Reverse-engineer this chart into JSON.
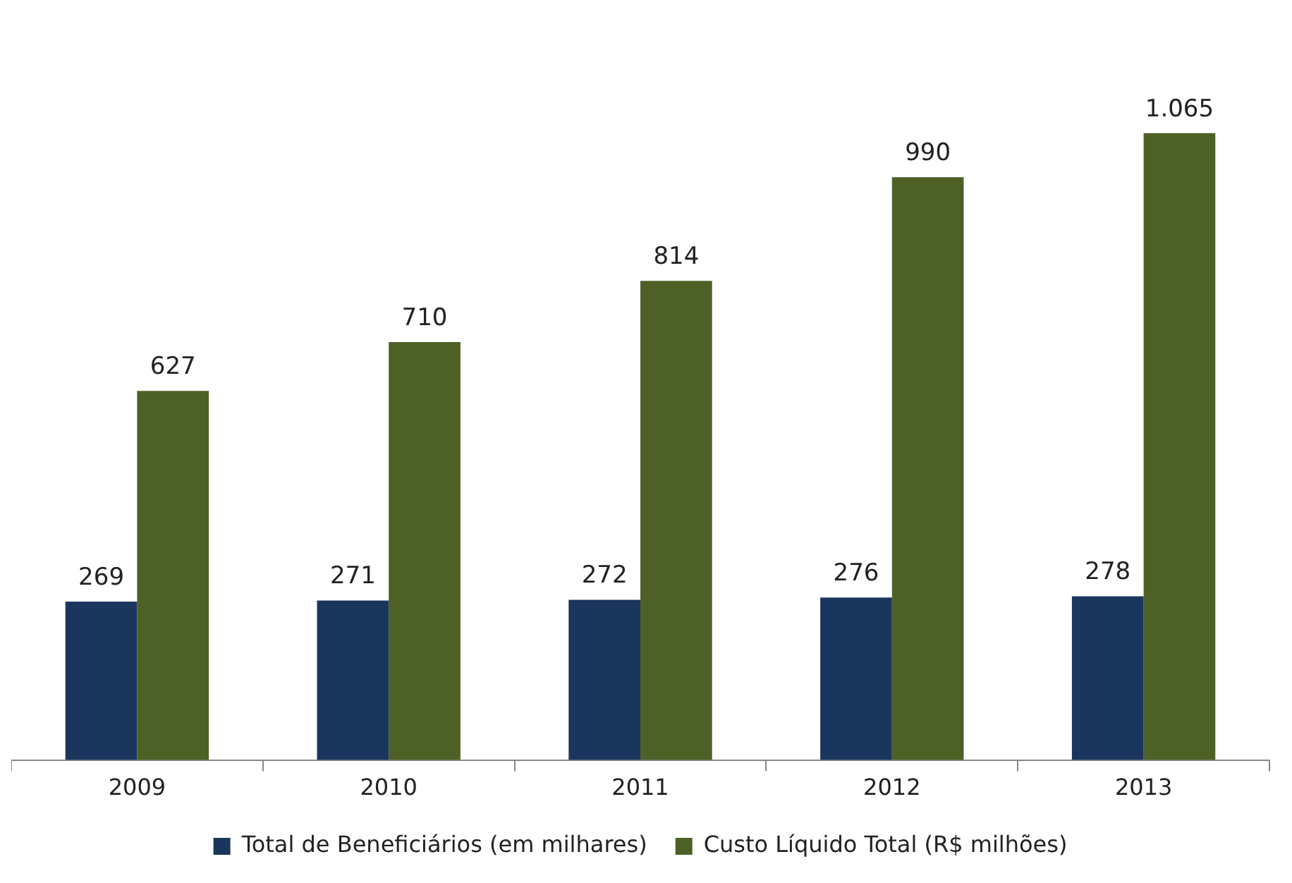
{
  "chart_data": {
    "type": "bar",
    "categories": [
      "2009",
      "2010",
      "2011",
      "2012",
      "2013"
    ],
    "series": [
      {
        "name": "Total de Beneficiários (em milhares)",
        "color": "#1b365d",
        "values": [
          269,
          271,
          272,
          276,
          278
        ],
        "value_labels": [
          "269",
          "271",
          "272",
          "276",
          "278"
        ]
      },
      {
        "name": "Custo Líquido Total (R$ milhões)",
        "color": "#4d6127",
        "values": [
          627,
          710,
          814,
          990,
          1065
        ],
        "value_labels": [
          "627",
          "710",
          "814",
          "990",
          "1.065"
        ]
      }
    ],
    "legend": "bottom",
    "grid": false,
    "tick_labels": "x"
  }
}
